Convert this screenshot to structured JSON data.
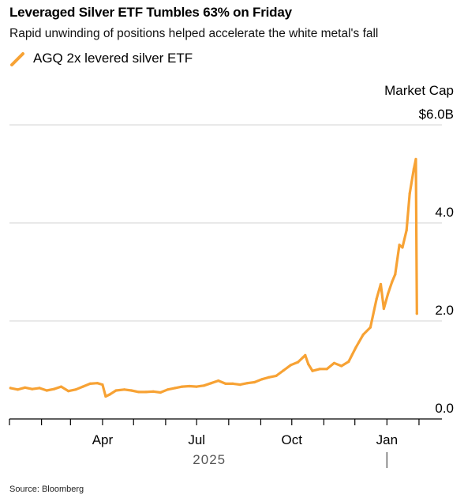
{
  "header": {
    "title": "Leveraged Silver ETF Tumbles 63% on Friday",
    "subtitle": "Rapid unwinding of positions helped accelerate the white metal's fall"
  },
  "footer": {
    "source": "Source: Bloomberg"
  },
  "colors": {
    "series": "#f7a234",
    "grid": "#d3d3d3",
    "axis": "#000000"
  },
  "chart_data": {
    "type": "line",
    "title": "Leveraged Silver ETF Tumbles 63% on Friday",
    "subtitle": "Rapid unwinding of positions helped accelerate the white metal's fall",
    "ylabel": "Market Cap",
    "ylabel_unit_tick": "$6.0B",
    "ylim": [
      0,
      6
    ],
    "y_ticks": [
      {
        "value": 0,
        "label": "0.0"
      },
      {
        "value": 2,
        "label": "2.0"
      },
      {
        "value": 4,
        "label": "4.0"
      },
      {
        "value": 6,
        "label": "$6.0B"
      }
    ],
    "x_ticks": [
      {
        "date": "2025-04-01",
        "label": "Apr"
      },
      {
        "date": "2025-07-01",
        "label": "Jul"
      },
      {
        "date": "2025-10-01",
        "label": "Oct"
      },
      {
        "date": "2026-01-01",
        "label": "Jan"
      }
    ],
    "x_year_labels": [
      {
        "date": "2025-07-01",
        "label": "2025"
      }
    ],
    "year_markers": [
      "2026-01-01"
    ],
    "xlim": [
      "2025-01-01",
      "2026-02-14"
    ],
    "grid": true,
    "legend_position": "top-left",
    "series": [
      {
        "name": "AGQ 2x levered silver ETF",
        "color": "#f7a234",
        "points": [
          [
            "2025-01-02",
            0.63
          ],
          [
            "2025-01-09",
            0.6
          ],
          [
            "2025-01-16",
            0.64
          ],
          [
            "2025-01-23",
            0.61
          ],
          [
            "2025-01-30",
            0.63
          ],
          [
            "2025-02-06",
            0.58
          ],
          [
            "2025-02-13",
            0.61
          ],
          [
            "2025-02-20",
            0.66
          ],
          [
            "2025-02-27",
            0.57
          ],
          [
            "2025-03-06",
            0.6
          ],
          [
            "2025-03-13",
            0.66
          ],
          [
            "2025-03-20",
            0.72
          ],
          [
            "2025-03-27",
            0.73
          ],
          [
            "2025-04-01",
            0.7
          ],
          [
            "2025-04-04",
            0.46
          ],
          [
            "2025-04-08",
            0.5
          ],
          [
            "2025-04-14",
            0.58
          ],
          [
            "2025-04-22",
            0.6
          ],
          [
            "2025-04-29",
            0.58
          ],
          [
            "2025-05-06",
            0.55
          ],
          [
            "2025-05-13",
            0.55
          ],
          [
            "2025-05-20",
            0.56
          ],
          [
            "2025-05-27",
            0.54
          ],
          [
            "2025-06-03",
            0.6
          ],
          [
            "2025-06-10",
            0.63
          ],
          [
            "2025-06-17",
            0.66
          ],
          [
            "2025-06-24",
            0.67
          ],
          [
            "2025-07-01",
            0.66
          ],
          [
            "2025-07-08",
            0.68
          ],
          [
            "2025-07-15",
            0.73
          ],
          [
            "2025-07-22",
            0.78
          ],
          [
            "2025-07-29",
            0.72
          ],
          [
            "2025-08-05",
            0.72
          ],
          [
            "2025-08-12",
            0.7
          ],
          [
            "2025-08-19",
            0.73
          ],
          [
            "2025-08-26",
            0.75
          ],
          [
            "2025-09-02",
            0.81
          ],
          [
            "2025-09-09",
            0.85
          ],
          [
            "2025-09-16",
            0.88
          ],
          [
            "2025-09-23",
            0.99
          ],
          [
            "2025-09-30",
            1.1
          ],
          [
            "2025-10-07",
            1.16
          ],
          [
            "2025-10-14",
            1.3
          ],
          [
            "2025-10-17",
            1.12
          ],
          [
            "2025-10-21",
            0.98
          ],
          [
            "2025-10-28",
            1.02
          ],
          [
            "2025-11-04",
            1.02
          ],
          [
            "2025-11-11",
            1.14
          ],
          [
            "2025-11-18",
            1.08
          ],
          [
            "2025-11-25",
            1.17
          ],
          [
            "2025-12-02",
            1.46
          ],
          [
            "2025-12-09",
            1.72
          ],
          [
            "2025-12-16",
            1.87
          ],
          [
            "2025-12-22",
            2.45
          ],
          [
            "2025-12-26",
            2.75
          ],
          [
            "2025-12-29",
            2.25
          ],
          [
            "2026-01-02",
            2.55
          ],
          [
            "2026-01-06",
            2.8
          ],
          [
            "2026-01-09",
            2.95
          ],
          [
            "2026-01-13",
            3.55
          ],
          [
            "2026-01-16",
            3.5
          ],
          [
            "2026-01-20",
            3.85
          ],
          [
            "2026-01-23",
            4.6
          ],
          [
            "2026-01-27",
            5.1
          ],
          [
            "2026-01-29",
            5.3
          ],
          [
            "2026-01-30",
            2.15
          ]
        ]
      }
    ]
  }
}
